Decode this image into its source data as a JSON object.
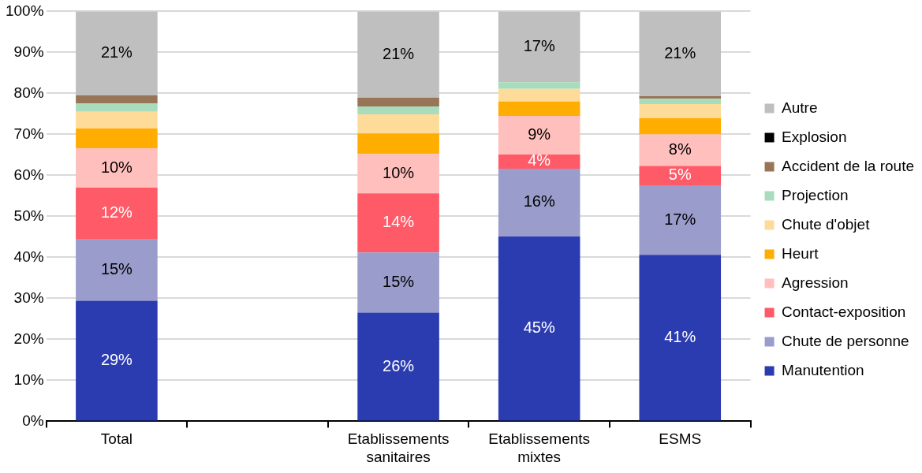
{
  "chart_data": {
    "type": "bar",
    "stacked": true,
    "legend": "right",
    "grid": "y",
    "categories": [
      "Total",
      null,
      "Etablissements sanitaires",
      "Etablissements mixtes",
      "ESMS"
    ],
    "ylim": [
      0,
      100
    ],
    "yticks": [
      {
        "value": 0,
        "label": "0%"
      },
      {
        "value": 10,
        "label": "10%"
      },
      {
        "value": 20,
        "label": "20%"
      },
      {
        "value": 30,
        "label": "30%"
      },
      {
        "value": 40,
        "label": "40%"
      },
      {
        "value": 50,
        "label": "50%"
      },
      {
        "value": 60,
        "label": "60%"
      },
      {
        "value": 70,
        "label": "70%"
      },
      {
        "value": 80,
        "label": "80%"
      },
      {
        "value": 90,
        "label": "90%"
      },
      {
        "value": 100,
        "label": "100%"
      }
    ],
    "series": [
      {
        "name": "Manutention",
        "color": "#2b3cb0",
        "values": [
          29.4,
          null,
          26.5,
          45.1,
          40.6
        ],
        "value_labels": [
          "29%",
          null,
          "26%",
          "45%",
          "41%"
        ]
      },
      {
        "name": "Chute de personne",
        "color": "#9a9ccb",
        "values": [
          15.1,
          null,
          14.7,
          16.5,
          17
        ],
        "value_labels": [
          "15%",
          null,
          "15%",
          "16%",
          "17%"
        ]
      },
      {
        "name": "Contact-exposition",
        "color": "#ff5a68",
        "values": [
          12.5,
          null,
          14.4,
          3.5,
          4.7
        ],
        "value_labels": [
          "12%",
          null,
          "14%",
          "4%",
          "5%"
        ]
      },
      {
        "name": "Agression",
        "color": "#ffc0bd",
        "values": [
          9.6,
          null,
          9.6,
          9.4,
          7.7
        ],
        "value_labels": [
          "10%",
          null,
          "10%",
          "9%",
          "8%"
        ]
      },
      {
        "name": "Heurt",
        "color": "#ffad00",
        "values": [
          4.8,
          null,
          5,
          3.5,
          3.9
        ]
      },
      {
        "name": "Chute d'objet",
        "color": "#ffdb99",
        "values": [
          4.1,
          null,
          4.7,
          3.1,
          3.5
        ]
      },
      {
        "name": "Projection",
        "color": "#a8dcbc",
        "values": [
          2.1,
          null,
          1.9,
          1.6,
          1.3
        ]
      },
      {
        "name": "Accident de la route",
        "color": "#977556",
        "values": [
          1.9,
          null,
          2.1,
          0,
          0.6
        ]
      },
      {
        "name": "Explosion",
        "color": "#000000",
        "values": [
          0,
          null,
          0,
          0,
          0
        ]
      },
      {
        "name": "Autre",
        "color": "#bfbfbf",
        "values": [
          20.5,
          null,
          21.1,
          17.3,
          20.7
        ],
        "value_labels": [
          "21%",
          null,
          "21%",
          "17%",
          "21%"
        ]
      }
    ]
  }
}
